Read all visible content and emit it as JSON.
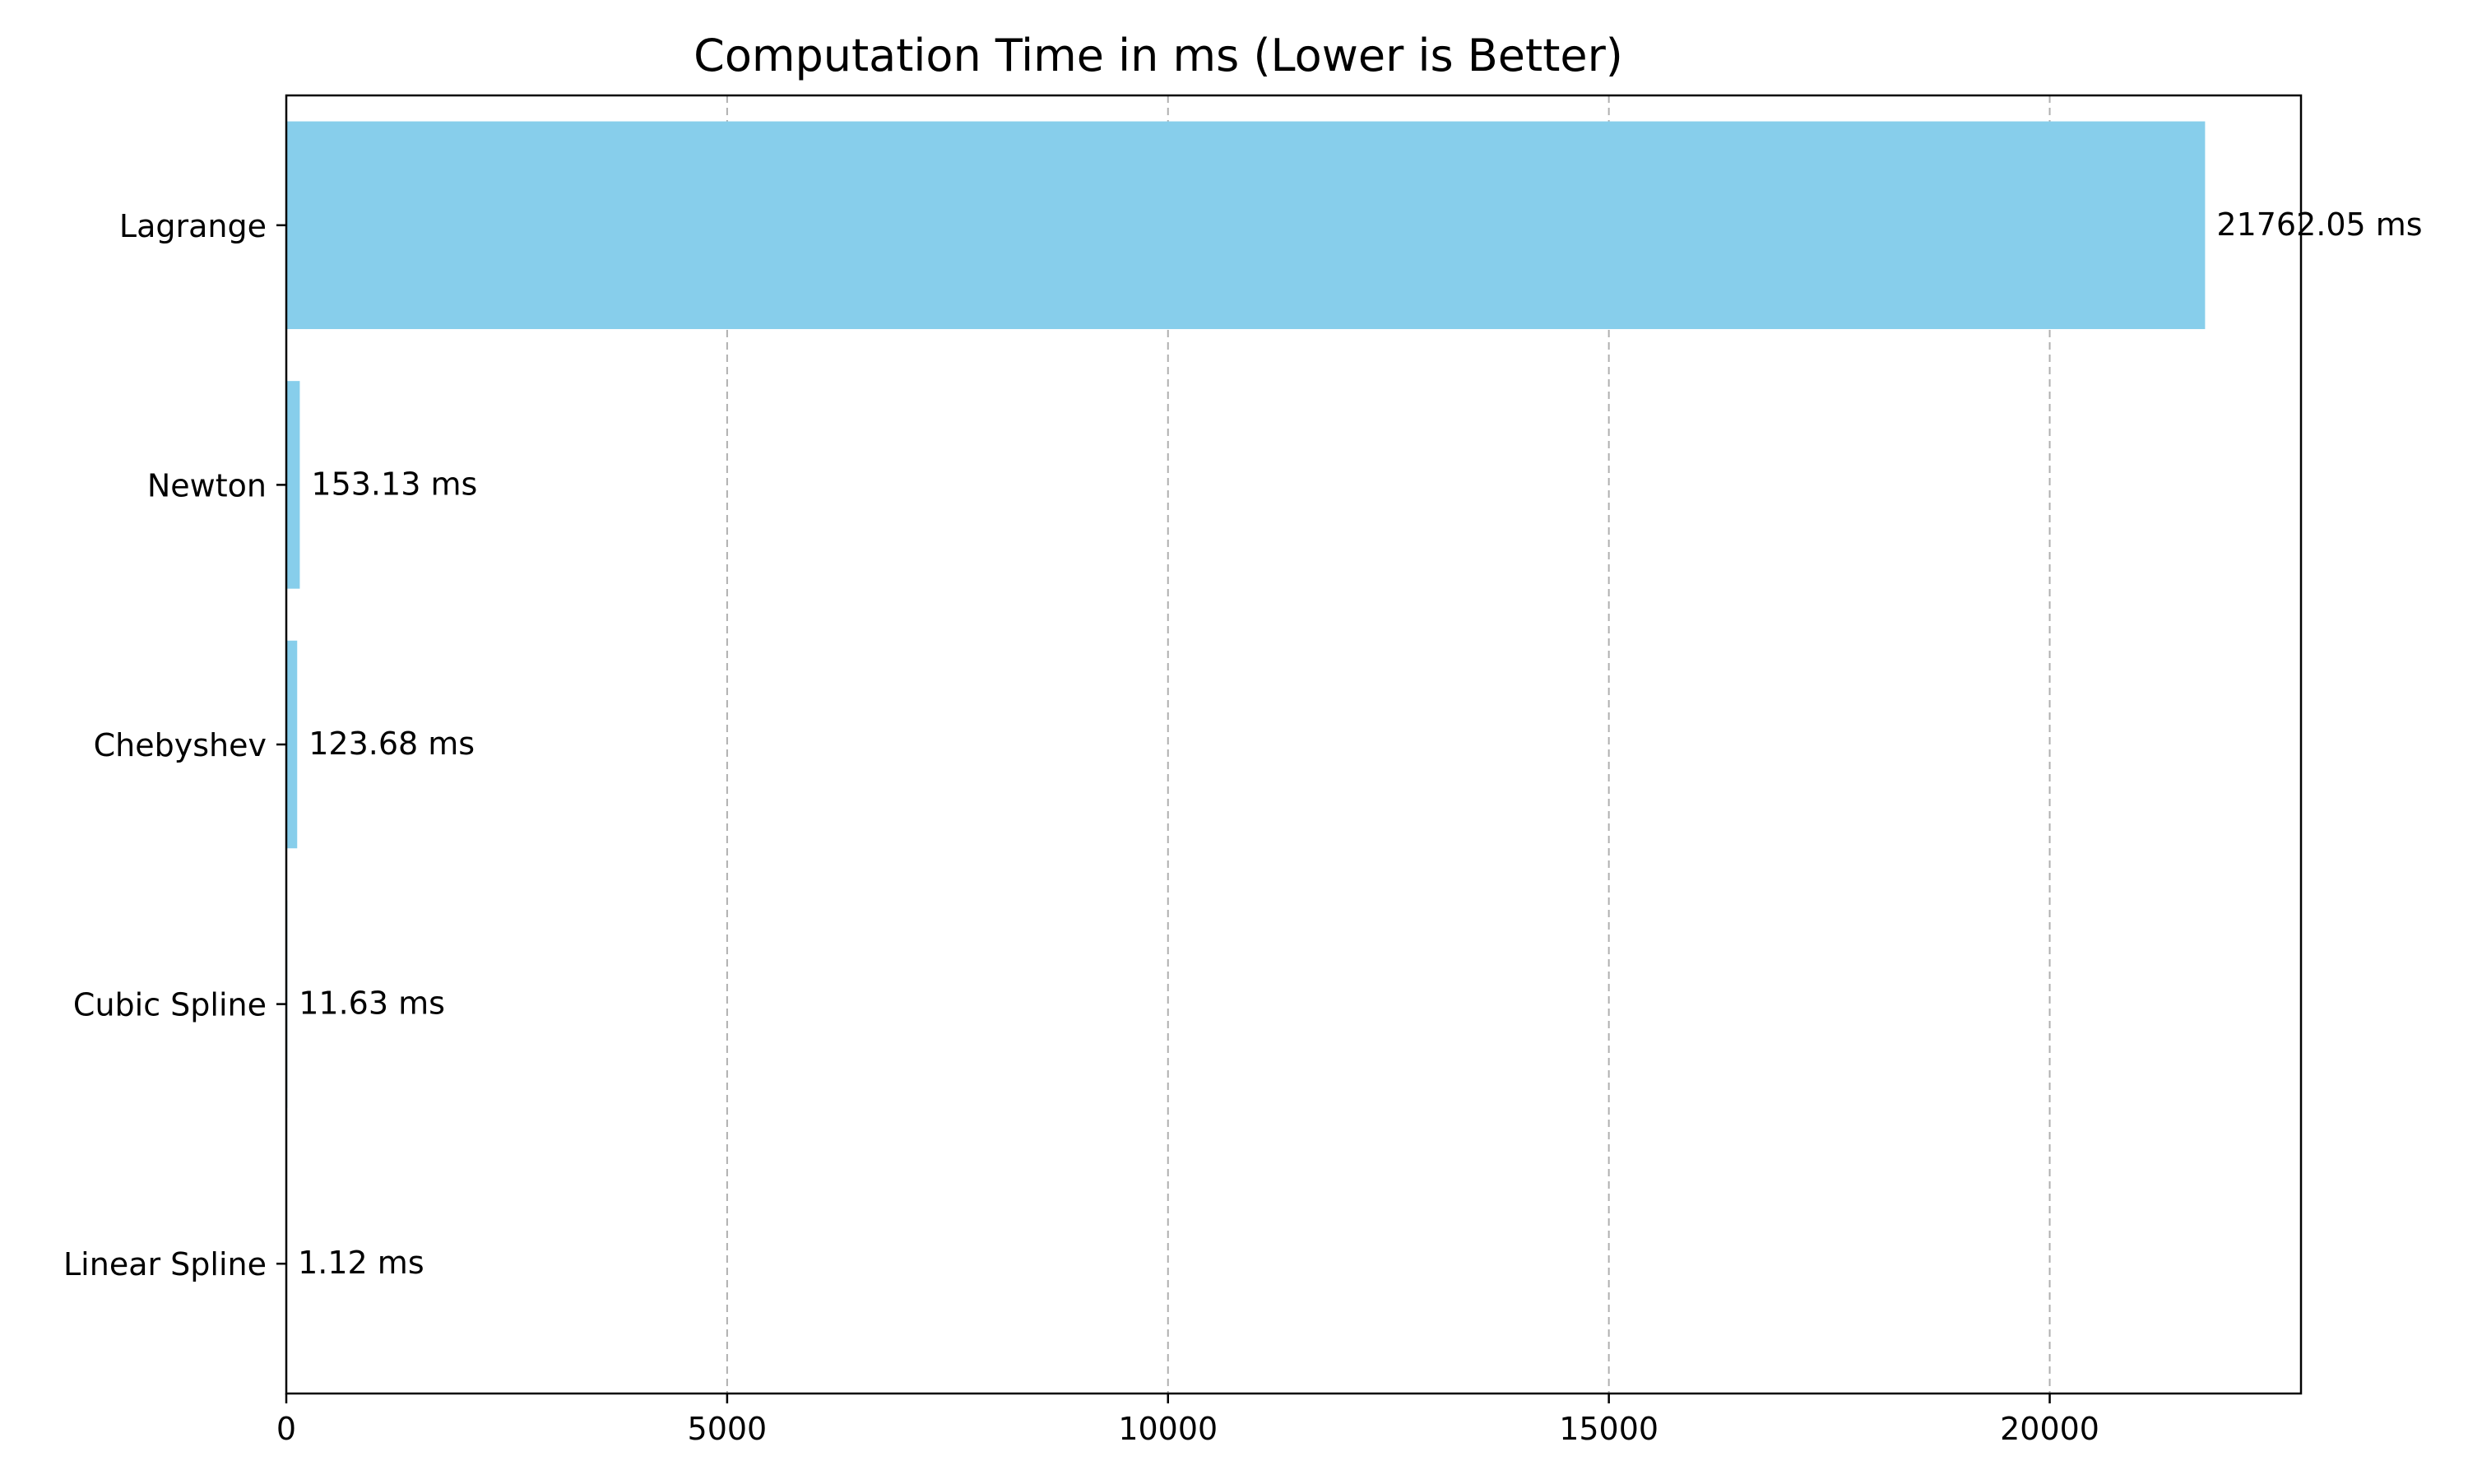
{
  "chart_data": {
    "type": "bar",
    "orientation": "horizontal",
    "title": "Computation Time in ms (Lower is Better)",
    "xlabel": "",
    "ylabel": "",
    "categories": [
      "Lagrange",
      "Newton",
      "Chebyshev",
      "Cubic Spline",
      "Linear Spline"
    ],
    "values": [
      21762.05,
      153.13,
      123.68,
      11.63,
      1.12
    ],
    "data_labels": [
      "21762.05 ms",
      "153.13 ms",
      "123.68 ms",
      "11.63 ms",
      "1.12 ms"
    ],
    "xlim": [
      0,
      22850
    ],
    "xticks": [
      0,
      5000,
      10000,
      15000,
      20000
    ],
    "xtick_labels": [
      "0",
      "5000",
      "10000",
      "15000",
      "20000"
    ],
    "grid": {
      "x": true,
      "y": false,
      "style": "dashed"
    },
    "legend": "none",
    "colors": {
      "bar": "#87CEEB",
      "grid": "#b0b0b0",
      "axis": "#000000",
      "text": "#000000"
    }
  }
}
